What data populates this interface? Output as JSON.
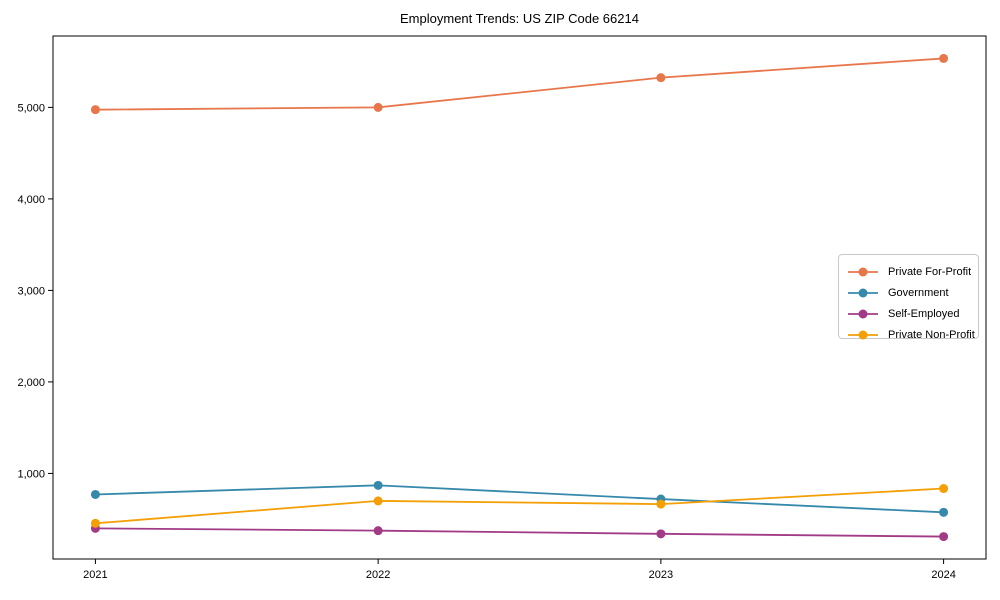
{
  "chart_data": {
    "type": "line",
    "title": "Employment Trends: US ZIP Code 66214",
    "x": [
      2021,
      2022,
      2023,
      2024
    ],
    "x_tick_labels": [
      "2021",
      "2022",
      "2023",
      "2024"
    ],
    "y_ticks": [
      1000,
      2000,
      3000,
      4000,
      5000
    ],
    "y_tick_labels": [
      "1,000",
      "2,000",
      "3,000",
      "4,000",
      "5,000"
    ],
    "series": [
      {
        "name": "Private For-Profit",
        "color": "#E8764B",
        "values": [
          4975,
          5000,
          5325,
          5535
        ]
      },
      {
        "name": "Government",
        "color": "#3789AB",
        "values": [
          770,
          870,
          720,
          575
        ]
      },
      {
        "name": "Self-Employed",
        "color": "#A23B87",
        "values": [
          400,
          375,
          340,
          310
        ]
      },
      {
        "name": "Private Non-Profit",
        "color": "#F39F05",
        "values": [
          455,
          700,
          665,
          835
        ]
      }
    ],
    "xlim": [
      2020.85,
      2024.15
    ],
    "ylim": [
      65,
      5780
    ],
    "grid": false,
    "legend_position": "center right",
    "marker": "circle",
    "axis_color": "#000000",
    "background_color": "#ffffff"
  }
}
